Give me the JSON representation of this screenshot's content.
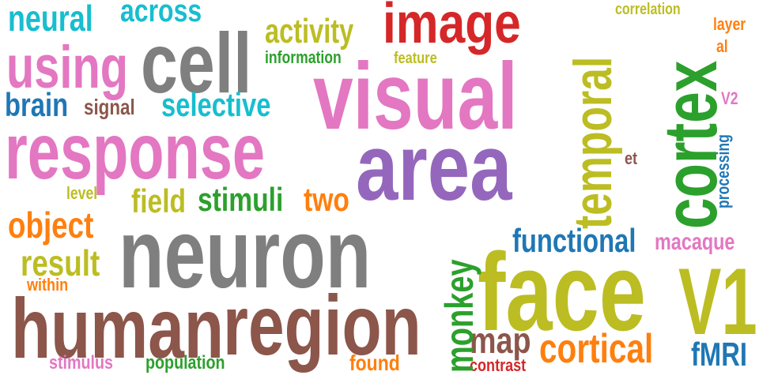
{
  "colors": {
    "teal": "#17becf",
    "gray": "#7f7f7f",
    "red": "#d62728",
    "olive": "#bcbd22",
    "orange": "#ff7f0e",
    "pink": "#e377c2",
    "blue": "#1f77b4",
    "brown": "#8c564b",
    "purple": "#9467bd",
    "green": "#2ca02c"
  },
  "words": [
    {
      "text": "neural",
      "color": "teal"
    },
    {
      "text": "across",
      "color": "teal"
    },
    {
      "text": "activity",
      "color": "olive"
    },
    {
      "text": "image",
      "color": "red"
    },
    {
      "text": "temporal",
      "color": "olive"
    },
    {
      "text": "correlation",
      "color": "olive"
    },
    {
      "text": "cortex",
      "color": "green"
    },
    {
      "text": "layer",
      "color": "orange"
    },
    {
      "text": "al",
      "color": "orange"
    },
    {
      "text": "using",
      "color": "pink"
    },
    {
      "text": "cell",
      "color": "gray"
    },
    {
      "text": "information",
      "color": "green"
    },
    {
      "text": "feature",
      "color": "olive"
    },
    {
      "text": "visual",
      "color": "pink"
    },
    {
      "text": "brain",
      "color": "blue"
    },
    {
      "text": "signal",
      "color": "brown"
    },
    {
      "text": "selective",
      "color": "teal"
    },
    {
      "text": "V2",
      "color": "pink"
    },
    {
      "text": "response",
      "color": "pink"
    },
    {
      "text": "area",
      "color": "purple"
    },
    {
      "text": "et",
      "color": "brown"
    },
    {
      "text": "processing",
      "color": "blue"
    },
    {
      "text": "level",
      "color": "olive"
    },
    {
      "text": "field",
      "color": "olive"
    },
    {
      "text": "stimuli",
      "color": "green"
    },
    {
      "text": "two",
      "color": "orange"
    },
    {
      "text": "object",
      "color": "orange"
    },
    {
      "text": "neuron",
      "color": "gray"
    },
    {
      "text": "monkey",
      "color": "green"
    },
    {
      "text": "functional",
      "color": "blue"
    },
    {
      "text": "macaque",
      "color": "pink"
    },
    {
      "text": "result",
      "color": "olive"
    },
    {
      "text": "within",
      "color": "orange"
    },
    {
      "text": "face",
      "color": "olive"
    },
    {
      "text": "V1",
      "color": "olive"
    },
    {
      "text": "human",
      "color": "brown"
    },
    {
      "text": "region",
      "color": "brown"
    },
    {
      "text": "map",
      "color": "brown"
    },
    {
      "text": "cortical",
      "color": "orange"
    },
    {
      "text": "fMRI",
      "color": "blue"
    },
    {
      "text": "stimulus",
      "color": "pink"
    },
    {
      "text": "population",
      "color": "green"
    },
    {
      "text": "found",
      "color": "orange"
    },
    {
      "text": "contrast",
      "color": "red"
    }
  ]
}
